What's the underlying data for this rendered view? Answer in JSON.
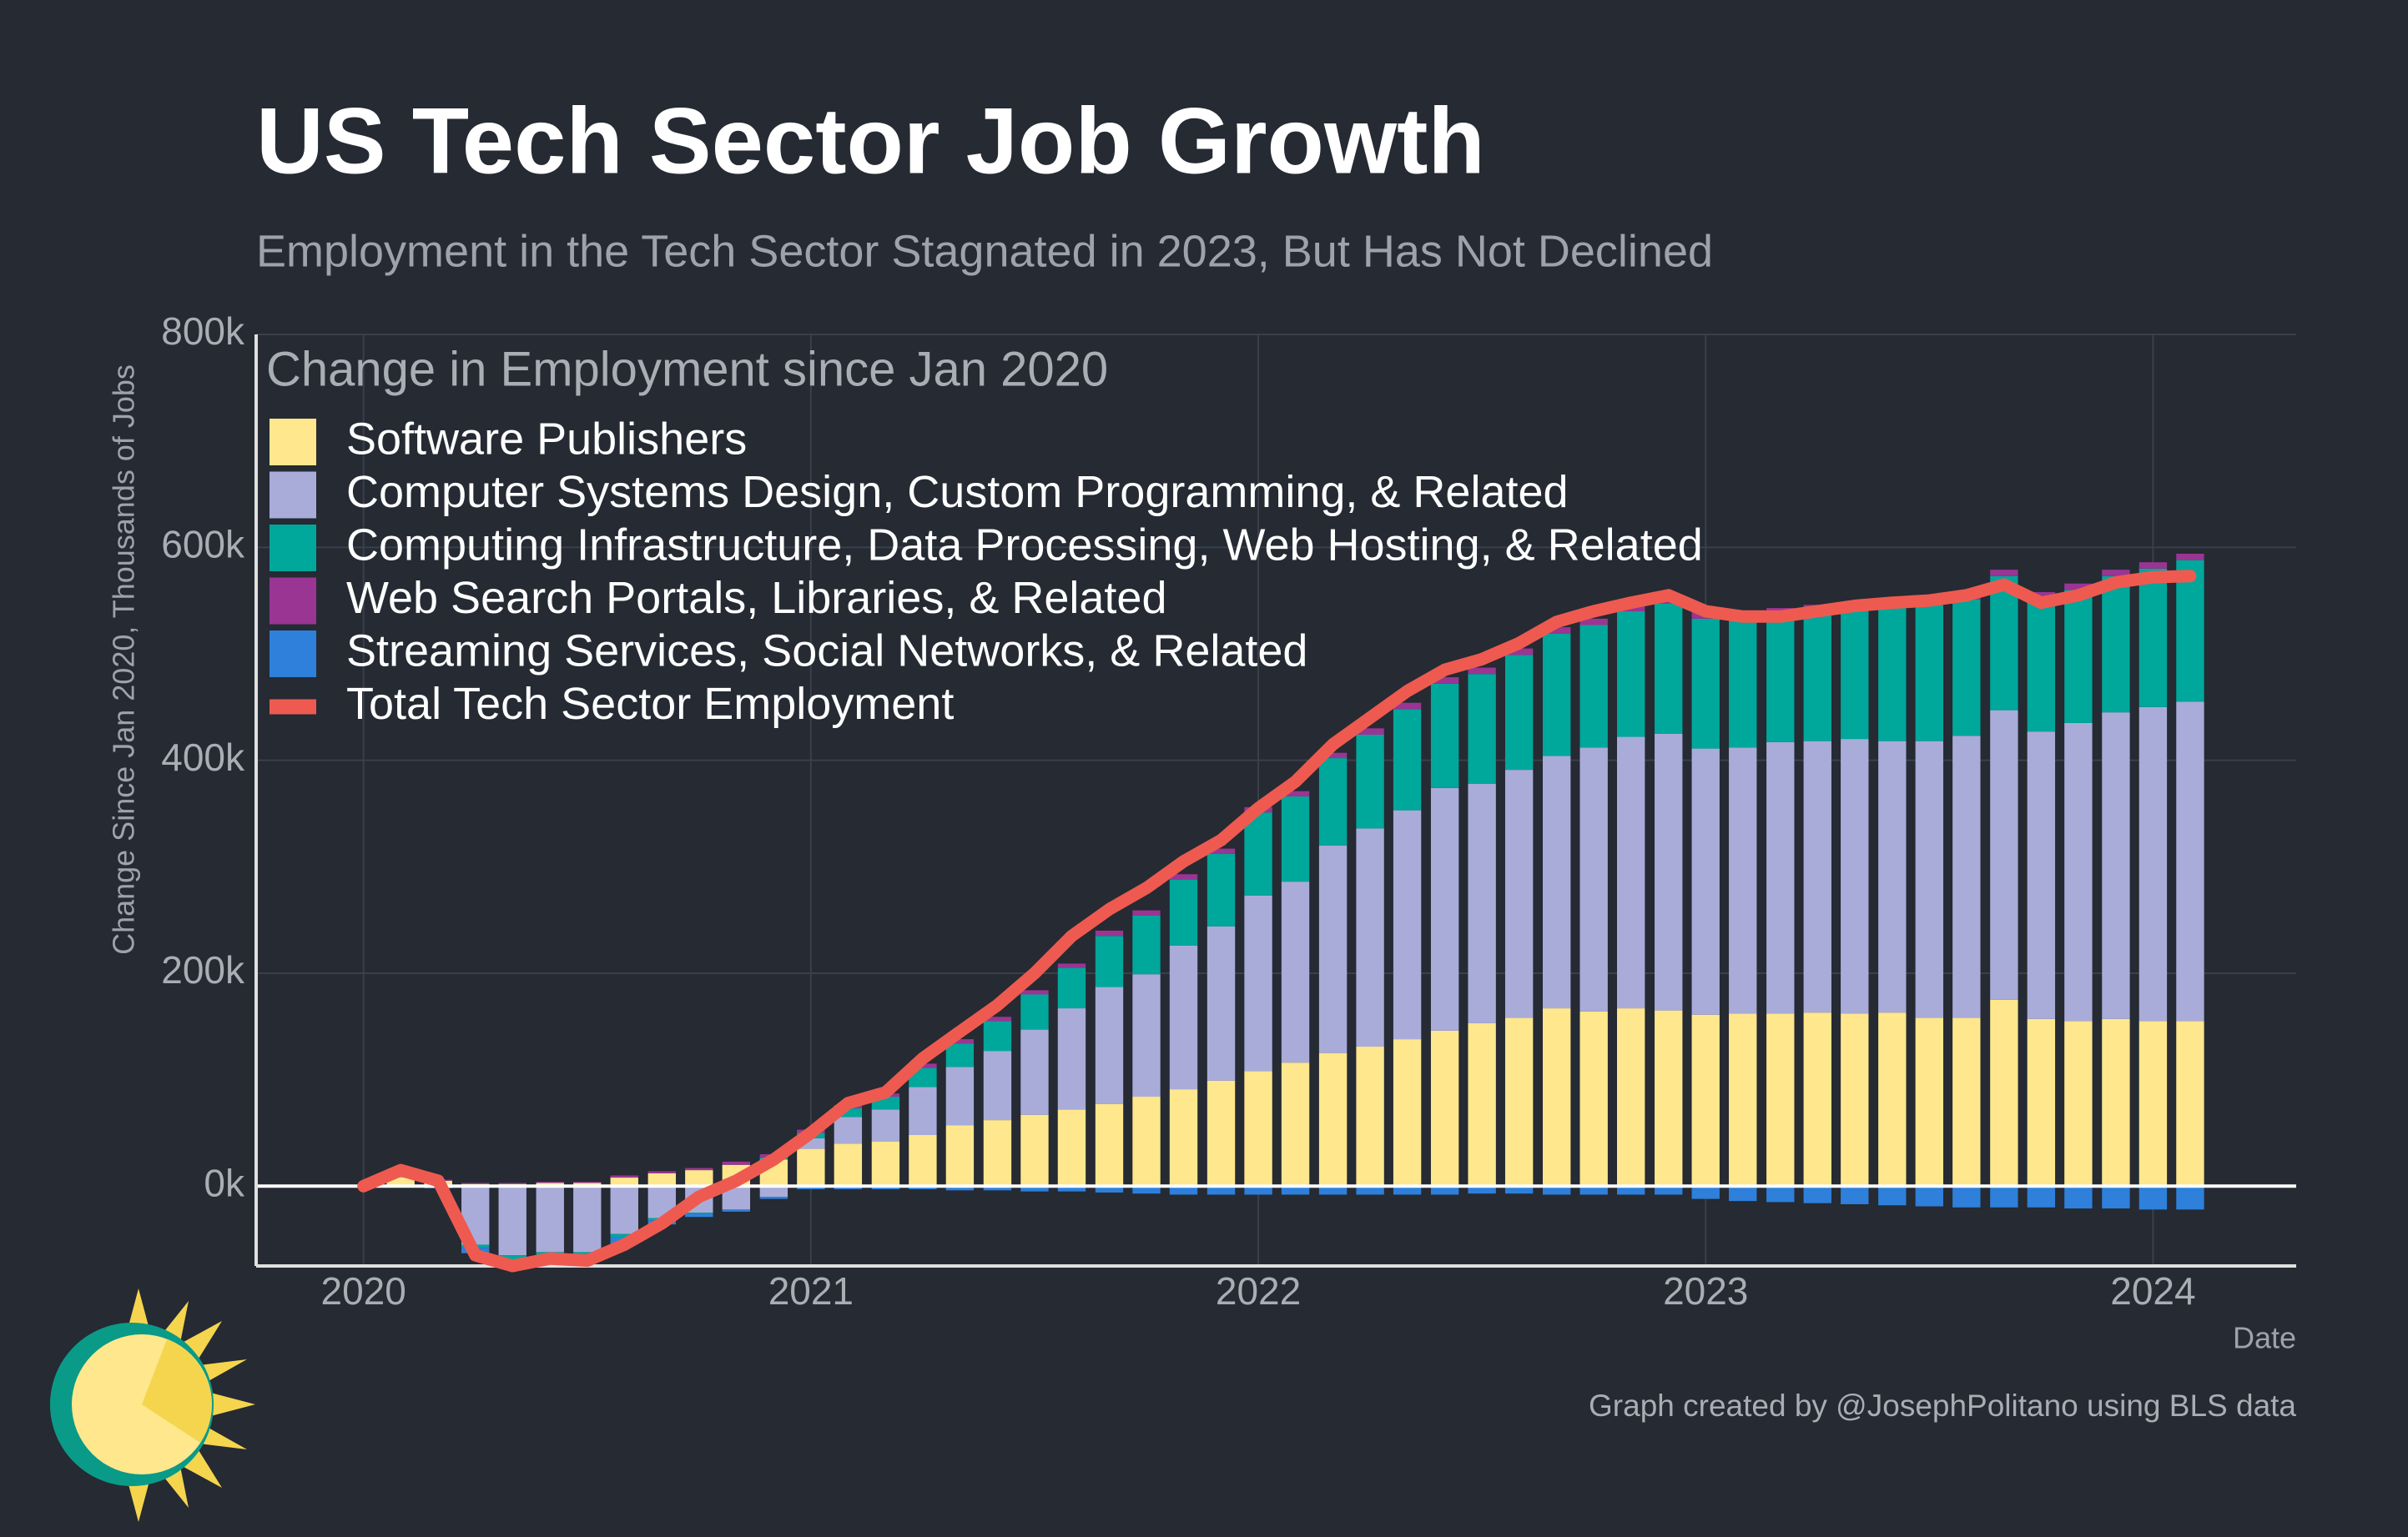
{
  "chart_data": {
    "type": "bar",
    "stacked": true,
    "title": "US Tech Sector Job Growth",
    "subtitle": "Employment in the Tech Sector Stagnated in 2023, But Has Not Declined",
    "y_label": "Change Since Jan 2020, Thousands of Jobs",
    "x_label": "Date",
    "legend_title": "Change in Employment since Jan 2020",
    "legend_position": "top-left",
    "grid": true,
    "caption": "Graph created by @JosephPolitano using BLS data",
    "x": [
      2020,
      2020.083,
      2020.167,
      2020.25,
      2020.333,
      2020.417,
      2020.5,
      2020.583,
      2020.667,
      2020.75,
      2020.833,
      2020.917,
      2021,
      2021.083,
      2021.167,
      2021.25,
      2021.333,
      2021.417,
      2021.5,
      2021.583,
      2021.667,
      2021.75,
      2021.833,
      2021.917,
      2022,
      2022.083,
      2022.167,
      2022.25,
      2022.333,
      2022.417,
      2022.5,
      2022.583,
      2022.667,
      2022.75,
      2022.833,
      2022.917,
      2023,
      2023.083,
      2023.167,
      2023.25,
      2023.333,
      2023.417,
      2023.5,
      2023.583,
      2023.667,
      2023.75,
      2023.833,
      2023.917,
      2024,
      2024.083
    ],
    "xlim": [
      2019.76,
      2024.32
    ],
    "xticks": [
      2020,
      2021,
      2022,
      2023,
      2024
    ],
    "ylim": [
      -75,
      800
    ],
    "yticks": [
      {
        "value": 0,
        "label": "0k"
      },
      {
        "value": 200,
        "label": "200k"
      },
      {
        "value": 400,
        "label": "400k"
      },
      {
        "value": 600,
        "label": "600k"
      },
      {
        "value": 800,
        "label": "800k"
      }
    ],
    "series": [
      {
        "name": "Software Publishers",
        "color": "#fee78c",
        "values": [
          0,
          8,
          5,
          2,
          2,
          3,
          3,
          8,
          12,
          15,
          20,
          25,
          35,
          40,
          42,
          48,
          57,
          62,
          67,
          72,
          77,
          84,
          91,
          99,
          108,
          116,
          125,
          131,
          138,
          146,
          153,
          158,
          167,
          164,
          167,
          165,
          161,
          162,
          162,
          163,
          162,
          163,
          158,
          158,
          175,
          157,
          155,
          157,
          155,
          155
        ]
      },
      {
        "name": "Computer Systems Design, Custom Programming, & Related",
        "color": "#a9acd9",
        "values": [
          0,
          5,
          0,
          -55,
          -65,
          -62,
          -62,
          -45,
          -30,
          -25,
          -22,
          -10,
          10,
          25,
          30,
          45,
          55,
          65,
          80,
          95,
          110,
          115,
          135,
          145,
          165,
          170,
          195,
          205,
          215,
          228,
          225,
          233,
          237,
          248,
          255,
          260,
          250,
          250,
          255,
          255,
          258,
          255,
          260,
          265,
          272,
          270,
          280,
          288,
          295,
          300
        ]
      },
      {
        "name": "Computing Infrastructure, Data Processing, Web Hosting, & Related",
        "color": "#00a79b",
        "values": [
          0,
          2,
          0,
          -3,
          -4,
          -3,
          -3,
          -3,
          -2,
          -1,
          0,
          2,
          5,
          8,
          12,
          18,
          22,
          28,
          33,
          38,
          48,
          55,
          62,
          68,
          78,
          80,
          82,
          88,
          95,
          98,
          103,
          108,
          115,
          115,
          118,
          122,
          122,
          120,
          120,
          122,
          122,
          125,
          128,
          128,
          126,
          125,
          125,
          128,
          130,
          133
        ]
      },
      {
        "name": "Web Search Portals, Libraries, & Related",
        "color": "#9a3594",
        "values": [
          0,
          1,
          1,
          1,
          1,
          1,
          1,
          2,
          2,
          2,
          3,
          3,
          3,
          3,
          3,
          4,
          4,
          4,
          4,
          4,
          5,
          5,
          5,
          5,
          5,
          5,
          5,
          6,
          6,
          6,
          6,
          6,
          6,
          6,
          6,
          6,
          6,
          6,
          6,
          6,
          6,
          6,
          6,
          6,
          6,
          6,
          6,
          6,
          6,
          6
        ]
      },
      {
        "name": "Streaming Services, Social Networks, & Related",
        "color": "#2e80da",
        "values": [
          0,
          0,
          -2,
          -5,
          -5,
          -5,
          -5,
          -6,
          -4,
          -3,
          -2,
          -2,
          -3,
          -3,
          -3,
          -3,
          -4,
          -4,
          -5,
          -5,
          -6,
          -7,
          -8,
          -8,
          -8,
          -8,
          -8,
          -8,
          -8,
          -8,
          -7,
          -7,
          -8,
          -8,
          -8,
          -8,
          -12,
          -14,
          -15,
          -16,
          -17,
          -18,
          -19,
          -20,
          -20,
          -20,
          -21,
          -21,
          -22,
          -22
        ]
      },
      {
        "name": "Total Tech Sector Employment",
        "type": "line",
        "color": "#ee5a50",
        "values": [
          0,
          15,
          5,
          -65,
          -75,
          -68,
          -70,
          -55,
          -35,
          -10,
          5,
          25,
          50,
          78,
          88,
          120,
          145,
          170,
          200,
          235,
          260,
          280,
          305,
          325,
          355,
          380,
          415,
          440,
          465,
          485,
          495,
          510,
          530,
          540,
          548,
          555,
          540,
          535,
          535,
          540,
          545,
          548,
          550,
          555,
          565,
          548,
          555,
          567,
          572,
          573
        ]
      }
    ]
  }
}
